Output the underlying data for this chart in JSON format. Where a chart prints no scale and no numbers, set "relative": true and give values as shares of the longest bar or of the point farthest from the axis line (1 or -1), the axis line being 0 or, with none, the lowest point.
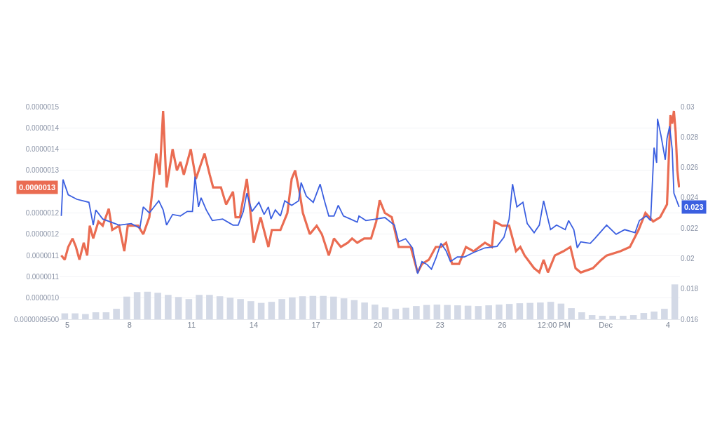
{
  "chart_data": [
    {
      "type": "line",
      "xlim": [
        "--11-04T15:00",
        "--12-04T14:00"
      ],
      "xticks": [
        {
          "value": "--11-05",
          "label": "5"
        },
        {
          "value": "--11-08",
          "label": "8"
        },
        {
          "value": "--11-11",
          "label": "11"
        },
        {
          "value": "--11-14",
          "label": "14"
        },
        {
          "value": "--11-17",
          "label": "17"
        },
        {
          "value": "--11-20",
          "label": "20"
        },
        {
          "value": "--11-23",
          "label": "23"
        },
        {
          "value": "--11-26",
          "label": "26"
        },
        {
          "value": "--11-28T12:00",
          "label": "12:00 PM"
        },
        {
          "value": "--12-01",
          "label": "Dec"
        },
        {
          "value": "--12-04",
          "label": "4"
        }
      ],
      "ylim": [
        9.5e-07,
        1.45e-06
      ],
      "yticks": [
        {
          "value": 9.5e-07,
          "label": "0.0000009500"
        },
        {
          "value": 1e-06,
          "label": "0.0000010"
        },
        {
          "value": 1.05e-06,
          "label": "0.0000011"
        },
        {
          "value": 1.1e-06,
          "label": "0.0000011"
        },
        {
          "value": 1.15e-06,
          "label": "0.0000012"
        },
        {
          "value": 1.2e-06,
          "label": "0.0000012"
        },
        {
          "value": 1.25e-06,
          "label": null
        },
        {
          "value": 1.3e-06,
          "label": "0.0000013"
        },
        {
          "value": 1.35e-06,
          "label": "0.0000014"
        },
        {
          "value": 1.4e-06,
          "label": "0.0000014"
        },
        {
          "value": 1.45e-06,
          "label": "0.0000015"
        }
      ],
      "y2lim": [
        0.016,
        0.03
      ],
      "y2ticks": [
        0.016,
        0.018,
        0.02,
        0.022,
        0.024,
        0.026,
        0.028,
        0.03
      ],
      "grid": "y",
      "annotations": [
        "0.0000013",
        "0.023"
      ],
      "series": [
        {
          "color": "#ea6c52",
          "x": [
            "--11-04T17:00",
            "--11-04T21:00",
            "--11-05T01:00",
            "--11-05T06:00",
            "--11-05T10:00",
            "--11-05T14:00",
            "--11-05T19:00",
            "--11-05T23:00",
            "--11-06T02:00",
            "--11-06T06:00",
            "--11-06T12:00",
            "--11-06T17:00",
            "--11-07T00:00",
            "--11-07T04:00",
            "--11-07T12:00",
            "--11-07T18:00",
            "--11-07T22:00",
            "--11-08T04:00",
            "--11-08T10:00",
            "--11-08T16:00",
            "--11-08T23:00",
            "--11-09T03:00",
            "--11-09T07:00",
            "--11-09T11:00",
            "--11-09T15:00",
            "--11-09T19:00",
            "--11-10T02:00",
            "--11-10T07:00",
            "--11-10T11:00",
            "--11-10T15:00",
            "--11-10T23:00",
            "--11-11T05:00",
            "--11-11T15:00",
            "--11-11T21:00",
            "--11-12T01:00",
            "--11-12T10:00",
            "--11-12T16:00",
            "--11-13T00:00",
            "--11-13T03:00",
            "--11-13T08:00",
            "--11-13T16:00",
            "--11-14T00:00",
            "--11-14T08:00",
            "--11-14T17:00",
            "--11-14T21:00",
            "--11-15T07:00",
            "--11-15T15:00",
            "--11-15T20:00",
            "--11-16T00:00",
            "--11-16T05:00",
            "--11-16T09:00",
            "--11-16T17:00",
            "--11-17T01:00",
            "--11-17T07:00",
            "--11-17T15:00",
            "--11-17T21:00",
            "--11-18T05:00",
            "--11-18T13:00",
            "--11-18T18:00",
            "--11-19T00:00",
            "--11-19T08:00",
            "--11-19T16:00",
            "--11-19T22:00",
            "--11-20T02:00",
            "--11-20T08:00",
            "--11-20T16:00",
            "--11-21T00:00",
            "--11-21T06:00",
            "--11-21T14:00",
            "--11-21T22:00",
            "--11-22T03:00",
            "--11-22T11:00",
            "--11-22T19:00",
            "--11-23T01:00",
            "--11-23T07:00",
            "--11-23T14:00",
            "--11-23T22:00",
            "--11-24T06:00",
            "--11-24T15:00",
            "--11-25T04:00",
            "--11-25T12:00",
            "--11-25T15:00",
            "--11-26T00:00",
            "--11-26T08:00",
            "--11-26T16:00",
            "--11-26T21:00",
            "--11-27T02:00",
            "--11-27T13:00",
            "--11-27T19:00",
            "--11-28T00:00",
            "--11-28T05:00",
            "--11-28T13:00",
            "--11-28T23:00",
            "--11-29T07:00",
            "--11-29T13:00",
            "--11-29T19:00",
            "--11-30T09:00",
            "--11-30T19:00",
            "--12-01T01:00",
            "--12-01T17:00",
            "--12-02T04:00",
            "--12-02T14:00",
            "--12-02T22:00",
            "--12-03T07:00",
            "--12-03T15:00",
            "--12-03T23:00",
            "--12-04T03:00",
            "--12-04T05:00",
            "--12-04T07:00",
            "--12-04T09:00",
            "--12-04T11:00",
            "--12-04T13:00"
          ],
          "values": [
            1.1e-06,
            1.09e-06,
            1.12e-06,
            1.14e-06,
            1.12e-06,
            1.09e-06,
            1.13e-06,
            1.1e-06,
            1.17e-06,
            1.14e-06,
            1.18e-06,
            1.17e-06,
            1.21e-06,
            1.16e-06,
            1.17e-06,
            1.11e-06,
            1.17e-06,
            1.17e-06,
            1.17e-06,
            1.15e-06,
            1.19e-06,
            1.26e-06,
            1.34e-06,
            1.29e-06,
            1.44e-06,
            1.26e-06,
            1.35e-06,
            1.3e-06,
            1.32e-06,
            1.29e-06,
            1.35e-06,
            1.28e-06,
            1.34e-06,
            1.29e-06,
            1.26e-06,
            1.26e-06,
            1.22e-06,
            1.25e-06,
            1.19e-06,
            1.19e-06,
            1.28e-06,
            1.13e-06,
            1.19e-06,
            1.12e-06,
            1.16e-06,
            1.16e-06,
            1.2e-06,
            1.28e-06,
            1.3e-06,
            1.25e-06,
            1.2e-06,
            1.15e-06,
            1.17e-06,
            1.15e-06,
            1.1e-06,
            1.14e-06,
            1.12e-06,
            1.13e-06,
            1.14e-06,
            1.13e-06,
            1.14e-06,
            1.14e-06,
            1.18e-06,
            1.23e-06,
            1.2e-06,
            1.19e-06,
            1.12e-06,
            1.12e-06,
            1.12e-06,
            1.06e-06,
            1.08e-06,
            1.09e-06,
            1.12e-06,
            1.12e-06,
            1.13e-06,
            1.08e-06,
            1.08e-06,
            1.12e-06,
            1.11e-06,
            1.13e-06,
            1.12e-06,
            1.18e-06,
            1.17e-06,
            1.17e-06,
            1.11e-06,
            1.12e-06,
            1.1e-06,
            1.07e-06,
            1.06e-06,
            1.09e-06,
            1.06e-06,
            1.1e-06,
            1.11e-06,
            1.12e-06,
            1.07e-06,
            1.06e-06,
            1.07e-06,
            1.09e-06,
            1.1e-06,
            1.11e-06,
            1.12e-06,
            1.16e-06,
            1.2e-06,
            1.18e-06,
            1.19e-06,
            1.22e-06,
            1.43e-06,
            1.41e-06,
            1.44e-06,
            1.39e-06,
            1.3e-06,
            1.26e-06
          ]
        },
        {
          "color": "#3b5fe0",
          "axis": "y2",
          "x": [
            "--11-04T17:00",
            "--11-04T19:00",
            "--11-05T01:00",
            "--11-05T11:00",
            "--11-06T01:00",
            "--11-06T06:00",
            "--11-06T09:00",
            "--11-06T17:00",
            "--11-07T12:00",
            "--11-08T02:00",
            "--11-08T12:00",
            "--11-08T16:00",
            "--11-08T23:00",
            "--11-09T10:00",
            "--11-09T15:00",
            "--11-09T19:00",
            "--11-10T02:00",
            "--11-10T11:00",
            "--11-10T19:00",
            "--11-11T01:00",
            "--11-11T04:00",
            "--11-11T08:00",
            "--11-11T11:00",
            "--11-11T17:00",
            "--11-12T00:00",
            "--11-12T12:00",
            "--11-13T00:00",
            "--11-13T06:00",
            "--11-13T12:00",
            "--11-13T16:00",
            "--11-13T22:00",
            "--11-14T06:00",
            "--11-14T12:00",
            "--11-14T17:00",
            "--11-14T20:00",
            "--11-15T01:00",
            "--11-15T07:00",
            "--11-15T12:00",
            "--11-15T20:00",
            "--11-16T04:00",
            "--11-16T07:00",
            "--11-16T13:00",
            "--11-16T21:00",
            "--11-17T05:00",
            "--11-17T10:00",
            "--11-17T15:00",
            "--11-17T21:00",
            "--11-18T02:00",
            "--11-18T08:00",
            "--11-18T16:00",
            "--11-19T00:00",
            "--11-19T02:00",
            "--11-19T10:00",
            "--11-19T22:00",
            "--11-20T08:00",
            "--11-20T19:00",
            "--11-21T00:00",
            "--11-21T08:00",
            "--11-21T16:00",
            "--11-21T22:00",
            "--11-22T03:00",
            "--11-22T09:00",
            "--11-22T14:00",
            "--11-22T19:00",
            "--11-23T01:00",
            "--11-23T07:00",
            "--11-23T12:00",
            "--11-23T20:00",
            "--11-24T04:00",
            "--11-24T15:00",
            "--11-25T04:00",
            "--11-25T18:00",
            "--11-26T02:00",
            "--11-26T08:00",
            "--11-26T12:00",
            "--11-26T17:00",
            "--11-27T00:00",
            "--11-27T05:00",
            "--11-27T13:00",
            "--11-27T19:00",
            "--11-28T00:00",
            "--11-28T08:00",
            "--11-28T15:00",
            "--11-29T01:00",
            "--11-29T05:00",
            "--11-29T11:00",
            "--11-29T15:00",
            "--11-29T19:00",
            "--11-30T06:00",
            "--11-30T11:00",
            "--12-01T01:00",
            "--12-01T12:00",
            "--12-01T22:00",
            "--12-02T10:00",
            "--12-02T15:00",
            "--12-02T23:00",
            "--12-03T04:00",
            "--12-03T08:00",
            "--12-03T11:00",
            "--12-03T12:00",
            "--12-03T16:00",
            "--12-03T21:00",
            "--12-03T23:00",
            "--12-04T02:00",
            "--12-04T05:00",
            "--12-04T07:00",
            "--12-04T13:00"
          ],
          "values": [
            0.0228,
            0.0252,
            0.0242,
            0.0239,
            0.0237,
            0.0222,
            0.0232,
            0.0226,
            0.0222,
            0.0223,
            0.022,
            0.0234,
            0.023,
            0.0238,
            0.0232,
            0.0222,
            0.0229,
            0.0228,
            0.0231,
            0.0231,
            0.0254,
            0.0234,
            0.024,
            0.0232,
            0.0225,
            0.0226,
            0.0222,
            0.0222,
            0.0231,
            0.0243,
            0.0231,
            0.0237,
            0.0229,
            0.0234,
            0.0226,
            0.0232,
            0.0228,
            0.0238,
            0.0235,
            0.0238,
            0.025,
            0.0241,
            0.0237,
            0.0249,
            0.0238,
            0.0228,
            0.0228,
            0.0235,
            0.0228,
            0.0226,
            0.0224,
            0.0228,
            0.0225,
            0.0226,
            0.0227,
            0.0222,
            0.0211,
            0.0213,
            0.0207,
            0.019,
            0.0198,
            0.0196,
            0.0193,
            0.02,
            0.021,
            0.0205,
            0.0198,
            0.0201,
            0.0201,
            0.0204,
            0.0207,
            0.0208,
            0.0214,
            0.0226,
            0.0249,
            0.0234,
            0.0237,
            0.0223,
            0.0217,
            0.0222,
            0.0238,
            0.0219,
            0.0222,
            0.0219,
            0.0225,
            0.0219,
            0.0207,
            0.0211,
            0.021,
            0.0213,
            0.0222,
            0.0216,
            0.0219,
            0.0217,
            0.0225,
            0.0228,
            0.0225,
            0.0273,
            0.0263,
            0.0292,
            0.0281,
            0.0265,
            0.0279,
            0.0287,
            0.0272,
            0.0243,
            0.0234
          ]
        }
      ]
    },
    {
      "type": "bar",
      "relative": true,
      "color": "#d3d9e6",
      "categories": [
        null,
        null,
        null,
        null,
        null,
        null,
        null,
        null,
        null,
        null,
        null,
        null,
        null,
        null,
        null,
        null,
        null,
        null,
        null,
        null,
        null,
        null,
        null,
        null,
        null,
        null,
        null,
        null,
        null,
        null,
        null,
        null,
        null,
        null,
        null,
        null,
        null,
        null,
        null,
        null,
        null,
        null,
        null,
        null,
        null,
        null,
        null,
        null,
        null,
        null,
        null,
        null,
        null,
        null,
        null,
        null,
        null,
        null,
        null,
        null
      ],
      "values": [
        0.17,
        0.17,
        0.15,
        0.2,
        0.2,
        0.3,
        0.65,
        0.78,
        0.79,
        0.76,
        0.7,
        0.64,
        0.58,
        0.7,
        0.7,
        0.66,
        0.62,
        0.58,
        0.52,
        0.47,
        0.5,
        0.58,
        0.63,
        0.66,
        0.67,
        0.67,
        0.65,
        0.6,
        0.55,
        0.48,
        0.42,
        0.34,
        0.3,
        0.33,
        0.38,
        0.41,
        0.42,
        0.41,
        0.4,
        0.39,
        0.38,
        0.4,
        0.42,
        0.44,
        0.46,
        0.47,
        0.48,
        0.5,
        0.45,
        0.32,
        0.2,
        0.12,
        0.1,
        0.1,
        0.1,
        0.12,
        0.18,
        0.22,
        0.3,
        1.0
      ]
    }
  ]
}
